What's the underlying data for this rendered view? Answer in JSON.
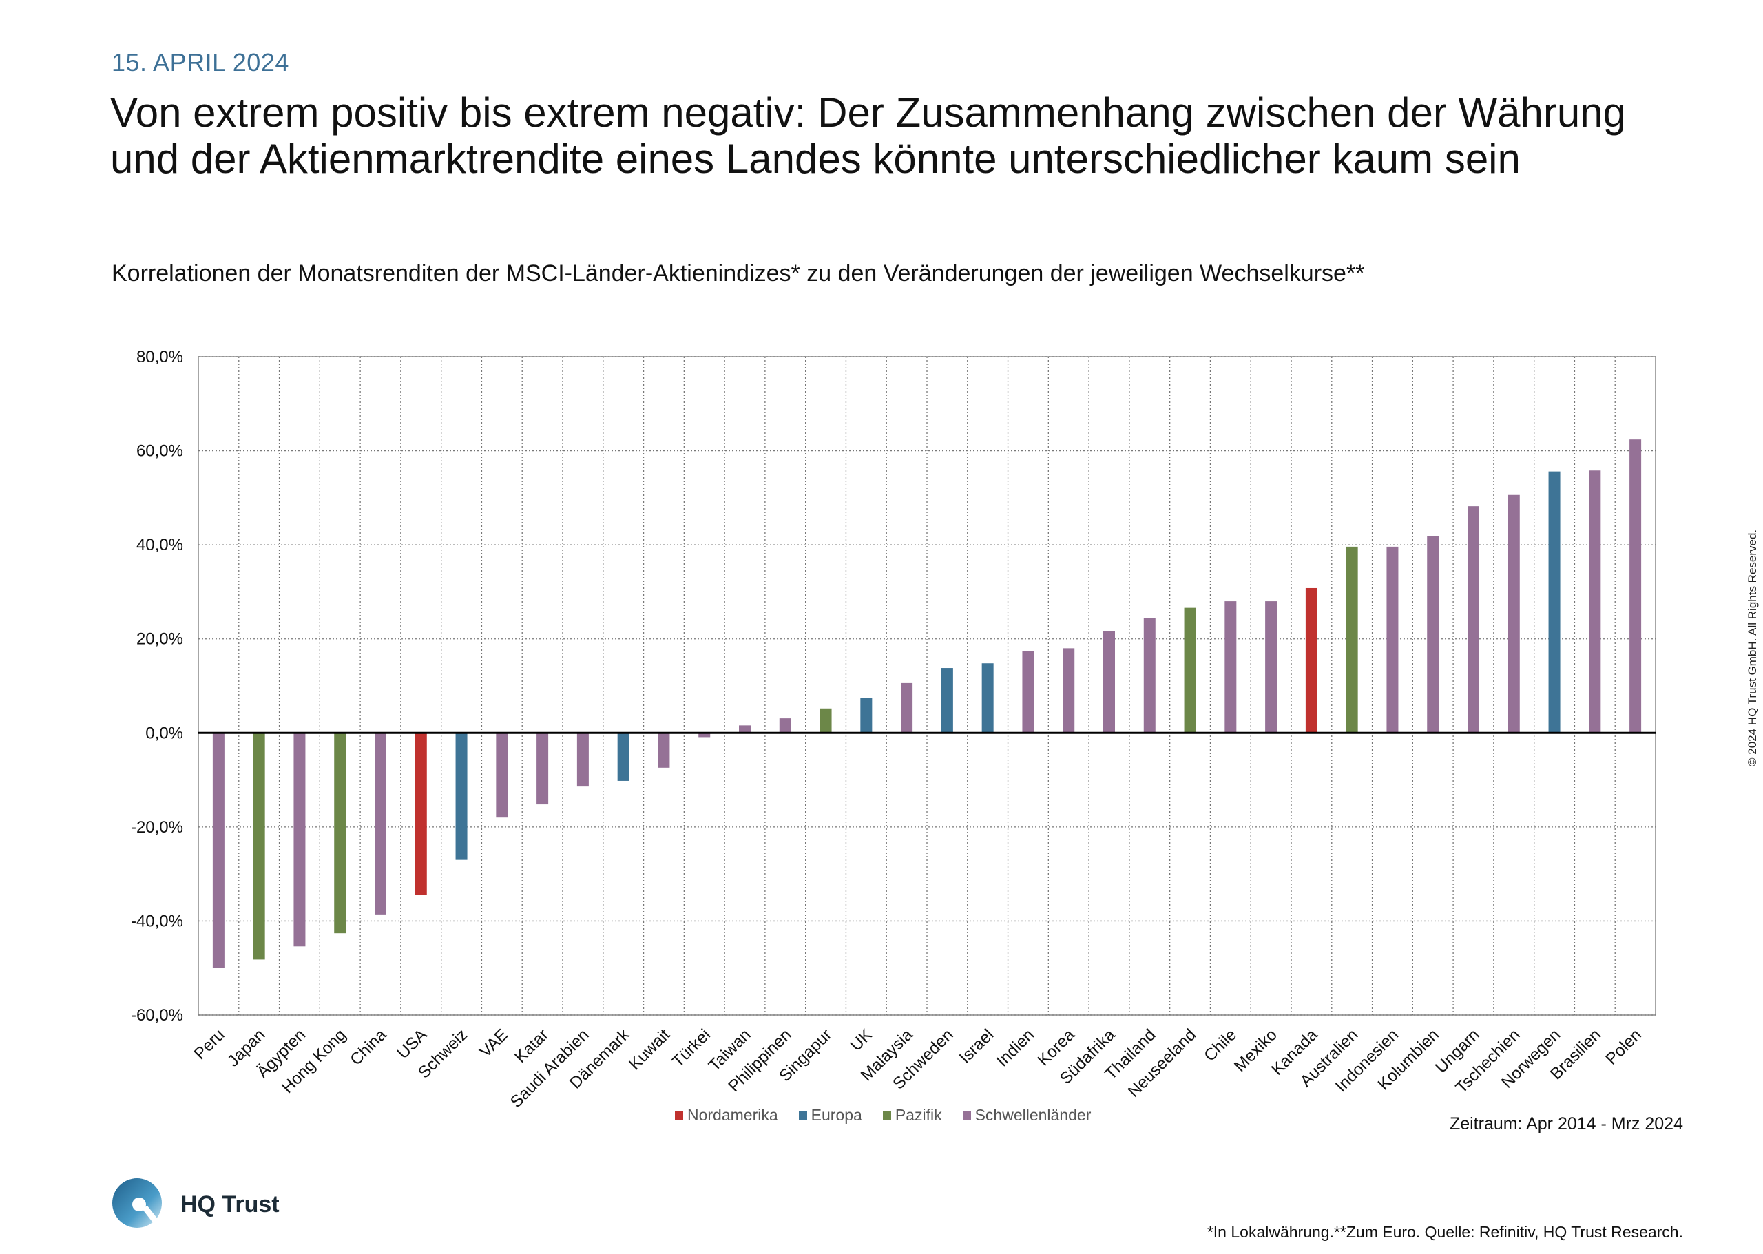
{
  "header": {
    "date": "15. APRIL 2024",
    "title": "Von extrem positiv bis extrem negativ: Der Zusammenhang zwischen der Währung und der Aktienmarktrendite eines Landes könnte unterschiedlicher kaum sein",
    "subtitle": "Korrelationen der Monatsrenditen der MSCI-Länder-Aktienindizes* zu den Veränderungen der jeweiligen Wechselkurse**"
  },
  "chart_data": {
    "type": "bar",
    "categories": [
      "Peru",
      "Japan",
      "Ägypten",
      "Hong Kong",
      "China",
      "USA",
      "Schweiz",
      "VAE",
      "Katar",
      "Saudi Arabien",
      "Dänemark",
      "Kuwait",
      "Türkei",
      "Taiwan",
      "Philippinen",
      "Singapur",
      "UK",
      "Malaysia",
      "Schweden",
      "Israel",
      "Indien",
      "Korea",
      "Südafrika",
      "Thailand",
      "Neuseeland",
      "Chile",
      "Mexiko",
      "Kanada",
      "Australien",
      "Indonesien",
      "Kolumbien",
      "Ungarn",
      "Tschechien",
      "Norwegen",
      "Brasilien",
      "Polen"
    ],
    "values": [
      -50.0,
      -48.2,
      -45.4,
      -42.6,
      -38.6,
      -34.4,
      -27.0,
      -18.0,
      -15.2,
      -11.4,
      -10.2,
      -7.4,
      -0.9,
      1.6,
      3.1,
      5.2,
      7.4,
      10.6,
      13.8,
      14.8,
      17.4,
      18.0,
      21.6,
      24.4,
      26.6,
      28.0,
      28.0,
      30.8,
      39.6,
      39.6,
      41.8,
      48.2,
      50.6,
      55.6,
      55.8,
      62.4
    ],
    "groups": [
      "Schwellenländer",
      "Pazifik",
      "Schwellenländer",
      "Pazifik",
      "Schwellenländer",
      "Nordamerika",
      "Europa",
      "Schwellenländer",
      "Schwellenländer",
      "Schwellenländer",
      "Europa",
      "Schwellenländer",
      "Schwellenländer",
      "Schwellenländer",
      "Schwellenländer",
      "Pazifik",
      "Europa",
      "Schwellenländer",
      "Europa",
      "Europa",
      "Schwellenländer",
      "Schwellenländer",
      "Schwellenländer",
      "Schwellenländer",
      "Pazifik",
      "Schwellenländer",
      "Schwellenländer",
      "Nordamerika",
      "Pazifik",
      "Schwellenländer",
      "Schwellenländer",
      "Schwellenländer",
      "Schwellenländer",
      "Europa",
      "Schwellenländer",
      "Schwellenländer"
    ],
    "ylim": [
      -60,
      80
    ],
    "yticks": [
      80,
      60,
      40,
      20,
      0,
      -20,
      -40,
      -60
    ],
    "ytick_labels": [
      "80,0%",
      "60,0%",
      "40,0%",
      "20,0%",
      "0,0%",
      "-20,0%",
      "-40,0%",
      "-60,0%"
    ],
    "grid": true,
    "legend": [
      {
        "name": "Nordamerika",
        "color": "#c0312e"
      },
      {
        "name": "Europa",
        "color": "#3e7496"
      },
      {
        "name": "Pazifik",
        "color": "#6c8748"
      },
      {
        "name": "Schwellenländer",
        "color": "#957196"
      }
    ],
    "legend_position": "bottom"
  },
  "period": "Zeitraum: Apr 2014 - Mrz 2024",
  "copyright": "© 2024 HQ Trust GmbH. All Rights Reserved.",
  "logo_text": "HQ Trust",
  "footnote": "*In Lokalwährung.**Zum Euro. Quelle: Refinitiv, HQ Trust Research."
}
